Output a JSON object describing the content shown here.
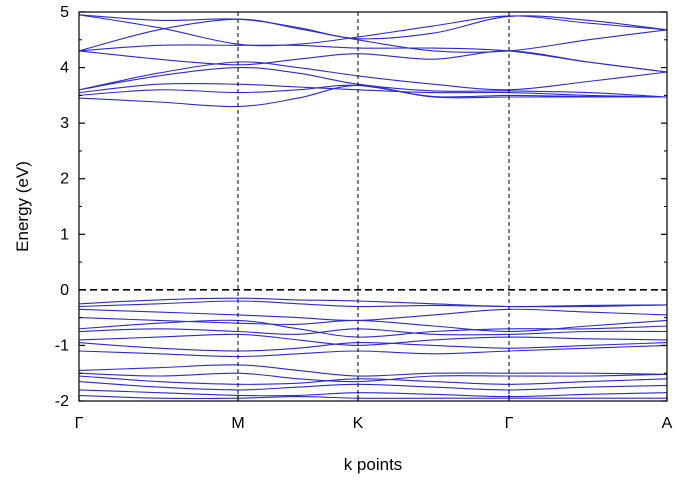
{
  "chart_data": {
    "type": "line",
    "xlabel": "k points",
    "ylabel": "Energy (eV)",
    "ylim": [
      -2,
      5
    ],
    "y_ticks": [
      -2,
      -1,
      0,
      1,
      2,
      3,
      4,
      5
    ],
    "y_tick_labels": [
      "-2",
      "-1",
      "0",
      "1",
      "2",
      "3",
      "4",
      "5"
    ],
    "x_points": [
      0,
      1,
      2,
      3,
      4
    ],
    "x_tick_labels": [
      "Γ",
      "M",
      "K",
      "Γ",
      "A"
    ],
    "fermi_level": 0,
    "grid": false,
    "line_color": "#2b2bd1",
    "series": [
      {
        "x": [
          0,
          0.5,
          1,
          1.5,
          2,
          2.5,
          3,
          3.5,
          4
        ],
        "values": [
          4.95,
          4.72,
          4.42,
          4.42,
          4.55,
          4.75,
          4.93,
          4.8,
          4.68
        ]
      },
      {
        "x": [
          0,
          0.5,
          1,
          1.5,
          2,
          2.5,
          3,
          3.5,
          4
        ],
        "values": [
          4.95,
          4.85,
          4.87,
          4.72,
          4.52,
          4.62,
          4.92,
          4.85,
          4.68
        ]
      },
      {
        "x": [
          0,
          0.5,
          1,
          1.5,
          2,
          2.5,
          3,
          3.5,
          4
        ],
        "values": [
          4.3,
          4.68,
          4.87,
          4.7,
          4.5,
          4.3,
          4.3,
          4.5,
          4.68
        ]
      },
      {
        "x": [
          0,
          0.5,
          1,
          1.5,
          2,
          2.5,
          3,
          3.5,
          4
        ],
        "values": [
          4.3,
          4.4,
          4.4,
          4.4,
          4.35,
          4.35,
          4.3,
          4.1,
          3.92
        ]
      },
      {
        "x": [
          0,
          0.5,
          1,
          1.5,
          2,
          2.5,
          3,
          3.5,
          4
        ],
        "values": [
          4.3,
          4.15,
          4.05,
          4.15,
          4.25,
          4.15,
          4.3,
          4.1,
          3.92
        ]
      },
      {
        "x": [
          0,
          0.5,
          1,
          1.5,
          2,
          2.5,
          3,
          3.5,
          4
        ],
        "values": [
          3.6,
          3.9,
          4.1,
          4.0,
          3.85,
          3.7,
          3.6,
          3.75,
          3.92
        ]
      },
      {
        "x": [
          0,
          0.5,
          1,
          1.5,
          2,
          2.5,
          3,
          3.5,
          4
        ],
        "values": [
          3.6,
          3.85,
          4.0,
          3.9,
          3.7,
          3.58,
          3.58,
          3.55,
          3.47
        ]
      },
      {
        "x": [
          0,
          0.5,
          1,
          1.5,
          2,
          2.5,
          3,
          3.5,
          4
        ],
        "values": [
          3.55,
          3.7,
          3.7,
          3.65,
          3.6,
          3.55,
          3.55,
          3.5,
          3.47
        ]
      },
      {
        "x": [
          0,
          0.5,
          1,
          1.5,
          2,
          2.5,
          3,
          3.5,
          4
        ],
        "values": [
          3.5,
          3.6,
          3.55,
          3.6,
          3.68,
          3.48,
          3.5,
          3.48,
          3.47
        ]
      },
      {
        "x": [
          0,
          0.5,
          1,
          1.5,
          2,
          2.5,
          3,
          3.5,
          4
        ],
        "values": [
          3.45,
          3.38,
          3.3,
          3.45,
          3.68,
          3.47,
          3.47,
          3.47,
          3.47
        ]
      },
      {
        "x": [
          0,
          0.5,
          1,
          1.5,
          2,
          2.5,
          3,
          3.5,
          4
        ],
        "values": [
          -0.25,
          -0.18,
          -0.15,
          -0.18,
          -0.2,
          -0.25,
          -0.3,
          -0.28,
          -0.27
        ]
      },
      {
        "x": [
          0,
          0.5,
          1,
          1.5,
          2,
          2.5,
          3,
          3.5,
          4
        ],
        "values": [
          -0.3,
          -0.25,
          -0.2,
          -0.25,
          -0.3,
          -0.28,
          -0.3,
          -0.3,
          -0.27
        ]
      },
      {
        "x": [
          0,
          0.5,
          1,
          1.5,
          2,
          2.5,
          3,
          3.5,
          4
        ],
        "values": [
          -0.35,
          -0.4,
          -0.45,
          -0.5,
          -0.55,
          -0.45,
          -0.35,
          -0.4,
          -0.45
        ]
      },
      {
        "x": [
          0,
          0.5,
          1,
          1.5,
          2,
          2.5,
          3,
          3.5,
          4
        ],
        "values": [
          -0.5,
          -0.55,
          -0.6,
          -0.62,
          -0.55,
          -0.65,
          -0.75,
          -0.65,
          -0.55
        ]
      },
      {
        "x": [
          0,
          0.5,
          1,
          1.5,
          2,
          2.5,
          3,
          3.5,
          4
        ],
        "values": [
          -0.7,
          -0.6,
          -0.55,
          -0.7,
          -0.85,
          -0.75,
          -0.7,
          -0.7,
          -0.65
        ]
      },
      {
        "x": [
          0,
          0.5,
          1,
          1.5,
          2,
          2.5,
          3,
          3.5,
          4
        ],
        "values": [
          -0.75,
          -0.7,
          -0.75,
          -0.8,
          -0.7,
          -0.8,
          -0.8,
          -0.75,
          -0.75
        ]
      },
      {
        "x": [
          0,
          0.5,
          1,
          1.5,
          2,
          2.5,
          3,
          3.5,
          4
        ],
        "values": [
          -0.9,
          -0.85,
          -0.8,
          -0.9,
          -1.0,
          -0.9,
          -0.85,
          -0.88,
          -0.9
        ]
      },
      {
        "x": [
          0,
          0.5,
          1,
          1.5,
          2,
          2.5,
          3,
          3.5,
          4
        ],
        "values": [
          -0.95,
          -1.05,
          -1.1,
          -1.05,
          -0.95,
          -1.0,
          -1.05,
          -1.0,
          -0.95
        ]
      },
      {
        "x": [
          0,
          0.5,
          1,
          1.5,
          2,
          2.5,
          3,
          3.5,
          4
        ],
        "values": [
          -1.1,
          -1.15,
          -1.2,
          -1.15,
          -1.1,
          -1.15,
          -1.1,
          -1.05,
          -1.0
        ]
      },
      {
        "x": [
          0,
          0.5,
          1,
          1.5,
          2,
          2.5,
          3,
          3.5,
          4
        ],
        "values": [
          -1.45,
          -1.4,
          -1.35,
          -1.45,
          -1.55,
          -1.5,
          -1.5,
          -1.5,
          -1.52
        ]
      },
      {
        "x": [
          0,
          0.5,
          1,
          1.5,
          2,
          2.5,
          3,
          3.5,
          4
        ],
        "values": [
          -1.5,
          -1.55,
          -1.5,
          -1.6,
          -1.65,
          -1.55,
          -1.55,
          -1.55,
          -1.52
        ]
      },
      {
        "x": [
          0,
          0.5,
          1,
          1.5,
          2,
          2.5,
          3,
          3.5,
          4
        ],
        "values": [
          -1.55,
          -1.65,
          -1.7,
          -1.68,
          -1.6,
          -1.65,
          -1.7,
          -1.65,
          -1.6
        ]
      },
      {
        "x": [
          0,
          0.5,
          1,
          1.5,
          2,
          2.5,
          3,
          3.5,
          4
        ],
        "values": [
          -1.65,
          -1.75,
          -1.8,
          -1.75,
          -1.7,
          -1.75,
          -1.8,
          -1.75,
          -1.72
        ]
      },
      {
        "x": [
          0,
          0.5,
          1,
          1.5,
          2,
          2.5,
          3,
          3.5,
          4
        ],
        "values": [
          -1.8,
          -1.85,
          -1.9,
          -1.9,
          -1.85,
          -1.88,
          -1.92,
          -1.88,
          -1.85
        ]
      },
      {
        "x": [
          0,
          0.5,
          1,
          1.5,
          2,
          2.5,
          3,
          3.5,
          4
        ],
        "values": [
          -1.9,
          -1.95,
          -1.95,
          -1.92,
          -1.95,
          -1.95,
          -1.95,
          -1.95,
          -1.95
        ]
      }
    ]
  }
}
